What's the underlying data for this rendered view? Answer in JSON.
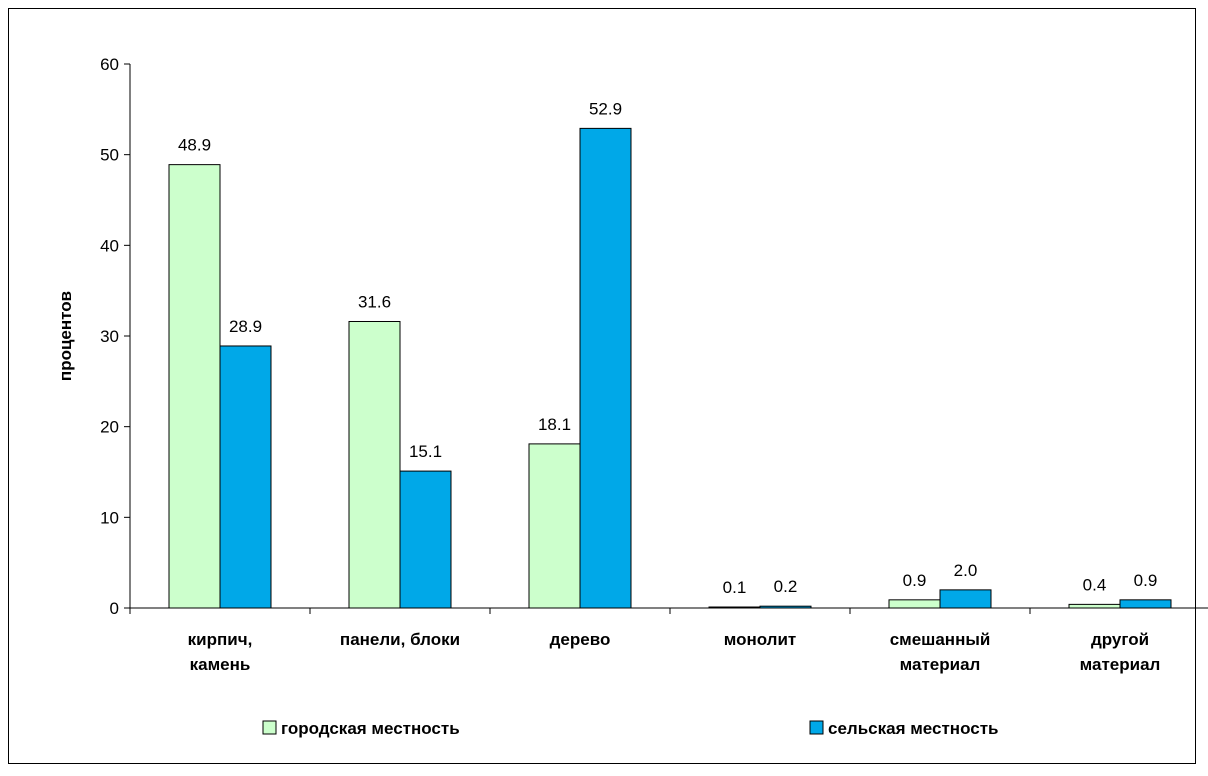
{
  "chart_data": {
    "type": "bar",
    "ylabel": "процентов",
    "ylim": [
      0,
      60
    ],
    "yticks": [
      0,
      10,
      20,
      30,
      40,
      50,
      60
    ],
    "categories": [
      [
        "кирпич,",
        "камень"
      ],
      [
        "панели, блоки"
      ],
      [
        "дерево"
      ],
      [
        "монолит"
      ],
      [
        "смешанный",
        "материал"
      ],
      [
        "другой",
        "материал"
      ]
    ],
    "series": [
      {
        "name": "городская местность",
        "color": "#ccffcc",
        "values": [
          48.9,
          31.6,
          18.1,
          0.1,
          0.9,
          0.4
        ],
        "labels": [
          "48.9",
          "31.6",
          "18.1",
          "0.1",
          "0.9",
          "0.4"
        ]
      },
      {
        "name": "сельская местность",
        "color": "#00a8e8",
        "values": [
          28.9,
          15.1,
          52.9,
          0.2,
          2.0,
          0.9
        ],
        "labels": [
          "28.9",
          "15.1",
          "52.9",
          "0.2",
          "2.0",
          "0.9"
        ]
      }
    ],
    "legend_position": "bottom",
    "grid": false
  }
}
